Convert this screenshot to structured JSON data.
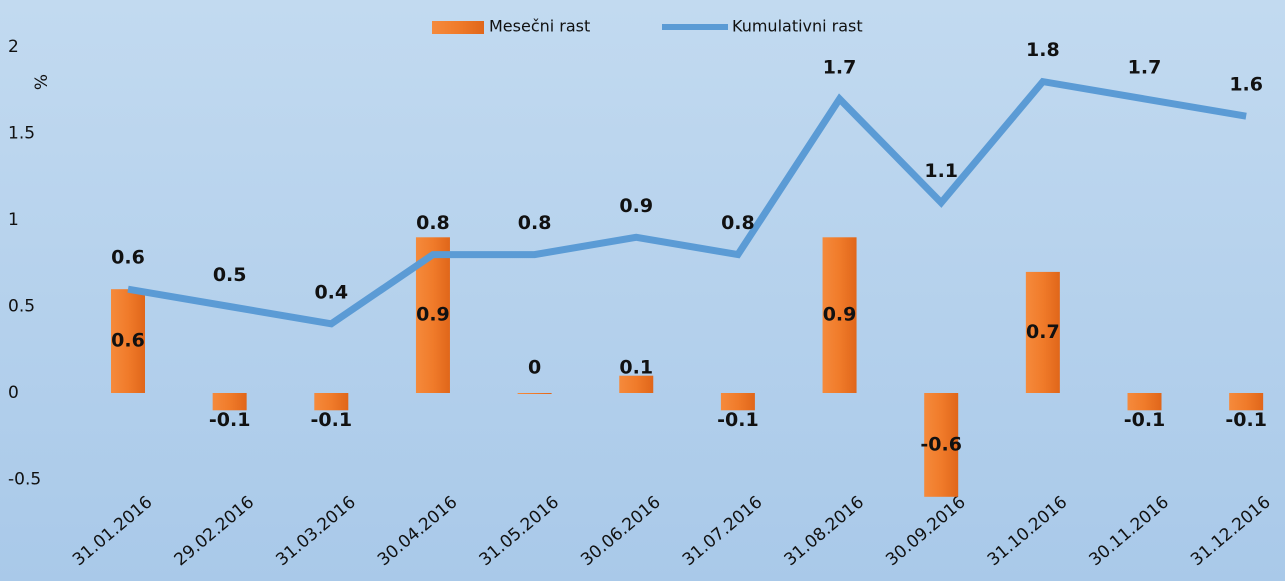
{
  "chart_data": {
    "type": "bar_line",
    "y_label": "%",
    "categories": [
      "31.01.2016",
      "29.02.2016",
      "31.03.2016",
      "30.04.2016",
      "31.05.2016",
      "30.06.2016",
      "31.07.2016",
      "31.08.2016",
      "30.09.2016",
      "31.10.2016",
      "30.11.2016",
      "31.12.2016"
    ],
    "series": [
      {
        "name": "Mesečni rast",
        "type": "bar",
        "color": "#f07b2a",
        "values": [
          0.6,
          -0.1,
          -0.1,
          0.9,
          0,
          0.1,
          -0.1,
          0.9,
          -0.6,
          0.7,
          -0.1,
          -0.1
        ]
      },
      {
        "name": "Kumulativni rast",
        "type": "line",
        "color": "#5b9bd5",
        "values": [
          0.6,
          0.5,
          0.4,
          0.8,
          0.8,
          0.9,
          0.8,
          1.7,
          1.1,
          1.8,
          1.7,
          1.6
        ]
      }
    ],
    "ylim": [
      -1,
      2
    ],
    "yticks": [
      -0.5,
      0,
      0.5,
      1,
      1.5,
      2
    ],
    "grid": false,
    "legend": "top"
  }
}
